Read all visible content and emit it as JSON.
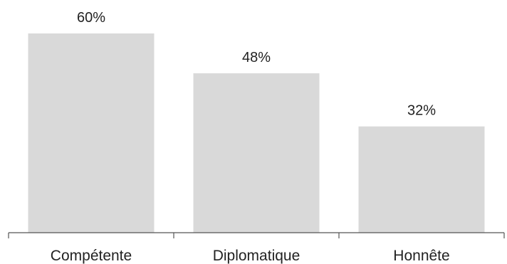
{
  "chart_data": {
    "type": "bar",
    "categories": [
      "Compétente",
      "Diplomatique",
      "Honnête"
    ],
    "values": [
      60,
      48,
      32
    ],
    "value_labels": [
      "60%",
      "48%",
      "32%"
    ],
    "title": "",
    "xlabel": "",
    "ylabel": "",
    "ylim": [
      0,
      60
    ],
    "grid": false,
    "legend": "none",
    "bar_color": "#d9d9d9",
    "axis_color": "#555555",
    "text_color": "#222222"
  }
}
